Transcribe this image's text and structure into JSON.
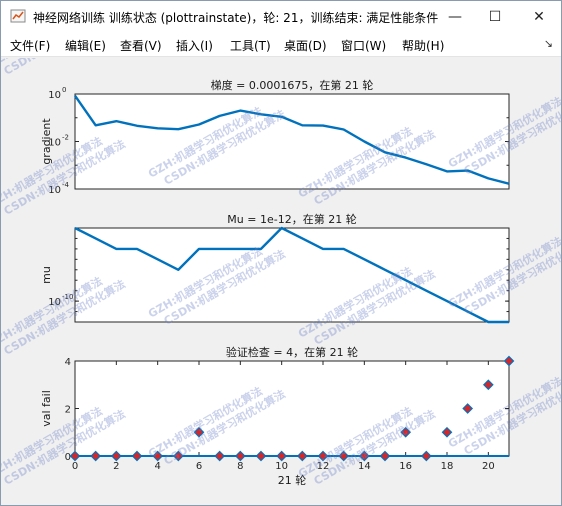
{
  "window": {
    "title": "神经网络训练 训练状态 (plottrainstate)，轮: 21，训练结束: 满足性能条件",
    "minimize_glyph": "—",
    "maximize_glyph": "☐",
    "close_glyph": "✕",
    "icon": "matlab-figure-icon"
  },
  "menubar": {
    "items": [
      "文件(F)",
      "编辑(E)",
      "查看(V)",
      "插入(I)",
      "工具(T)",
      "桌面(D)",
      "窗口(W)",
      "帮助(H)"
    ],
    "overflow_glyph": "↘"
  },
  "watermark": {
    "lines": [
      "GZH:机器学习和优化算法",
      "CSDN:机器学习和优化算法"
    ]
  },
  "colors": {
    "line": "#0072bd",
    "marker_fill": "#d62728",
    "marker_edge": "#0072bd"
  },
  "chart_data": [
    {
      "type": "line",
      "title": "梯度 = 0.0001675，在第 21 轮",
      "xlabel": "",
      "ylabel": "gradient",
      "xlim": [
        0,
        21
      ],
      "ylim": [
        0.0001,
        1
      ],
      "yscale": "log",
      "yticks": [
        0.0001,
        0.01,
        1
      ],
      "ytick_labels": [
        "10",
        "10",
        "10"
      ],
      "ytick_exponents": [
        "-4",
        "-2",
        "0"
      ],
      "x": [
        0,
        1,
        2,
        3,
        4,
        5,
        6,
        7,
        8,
        9,
        10,
        11,
        12,
        13,
        14,
        15,
        16,
        17,
        18,
        19,
        20,
        21
      ],
      "values": [
        0.85,
        0.048,
        0.072,
        0.046,
        0.036,
        0.033,
        0.052,
        0.12,
        0.2,
        0.14,
        0.11,
        0.048,
        0.047,
        0.032,
        0.01,
        0.0035,
        0.0021,
        0.0011,
        0.00055,
        0.0006,
        0.00028,
        0.0001675
      ]
    },
    {
      "type": "line",
      "title": "Mu = 1e-12，在第 21 轮",
      "xlabel": "",
      "ylabel": "mu",
      "xlim": [
        0,
        21
      ],
      "ylim": [
        1e-12,
        0.001
      ],
      "yscale": "log",
      "yticks": [
        1e-10
      ],
      "ytick_labels": [
        "10"
      ],
      "ytick_exponents": [
        "-10"
      ],
      "x": [
        0,
        1,
        2,
        3,
        4,
        5,
        6,
        7,
        8,
        9,
        10,
        11,
        12,
        13,
        14,
        15,
        16,
        17,
        18,
        19,
        20,
        21
      ],
      "values": [
        0.001,
        0.0001,
        1e-05,
        1e-05,
        1e-06,
        1e-07,
        1e-05,
        1e-05,
        1e-05,
        1e-05,
        0.001,
        0.0001,
        1e-05,
        1e-05,
        1e-06,
        1e-07,
        1e-08,
        1e-09,
        1e-10,
        1e-11,
        1e-12,
        1e-12
      ]
    },
    {
      "type": "scatter",
      "title": "验证检查 = 4，在第 21 轮",
      "xlabel": "21 轮",
      "ylabel": "val fail",
      "xlim": [
        0,
        21
      ],
      "ylim": [
        0,
        4
      ],
      "xticks": [
        0,
        2,
        4,
        6,
        8,
        10,
        12,
        14,
        16,
        18,
        20
      ],
      "yticks": [
        0,
        2,
        4
      ],
      "x": [
        0,
        1,
        2,
        3,
        4,
        5,
        6,
        7,
        8,
        9,
        10,
        11,
        12,
        13,
        14,
        15,
        16,
        17,
        18,
        19,
        20,
        21
      ],
      "values": [
        0,
        0,
        0,
        0,
        0,
        0,
        1,
        0,
        0,
        0,
        0,
        0,
        0,
        0,
        0,
        0,
        1,
        0,
        1,
        2,
        3,
        4
      ]
    }
  ]
}
